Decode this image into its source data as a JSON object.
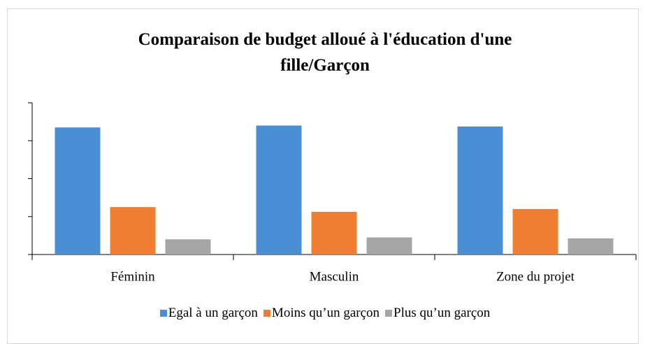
{
  "chart_data": {
    "type": "bar",
    "title": "Comparaison de budget alloué à l'éducation d'une fille/Garçon",
    "categories": [
      "Féminin",
      "Masculin",
      "Zone du projet"
    ],
    "series": [
      {
        "name": "Egal à un garçon",
        "color": "#4a8fd6",
        "values": [
          67,
          68,
          67.5
        ]
      },
      {
        "name": "Moins qu’un garçon",
        "color": "#ef7d32",
        "values": [
          25,
          22.5,
          24
        ]
      },
      {
        "name": "Plus qu’un garçon",
        "color": "#a5a5a5",
        "values": [
          8,
          9,
          8.5
        ]
      }
    ],
    "ylim": [
      0,
      80
    ],
    "yticks": [
      0,
      20,
      40,
      60,
      80
    ],
    "legend": "bottom"
  }
}
